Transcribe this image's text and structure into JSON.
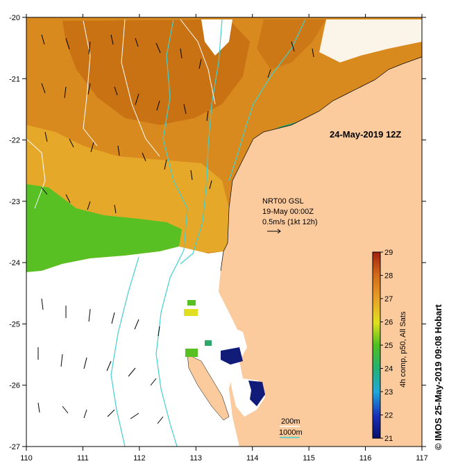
{
  "map": {
    "date_label": "24-May-2019 12Z",
    "current_info": {
      "line1": "NRT00 GSL",
      "line2": "19-May 00:00Z",
      "line3": "0.5m/s (1kt 12h)"
    },
    "depth_legend": {
      "label_200": "200m",
      "label_1000": "1000m",
      "color_200": "#ffffff",
      "color_1000": "#40d0d0"
    },
    "colorbar": {
      "title": "4h comp, p50, All Sats",
      "ticks": [
        "29",
        "28",
        "27",
        "26",
        "25",
        "24",
        "23",
        "22",
        "21"
      ]
    },
    "credit": "© IMOS 25-May-2019 09:08 Hobart",
    "x_ticks": [
      "110",
      "111",
      "112",
      "113",
      "114",
      "115",
      "116",
      "117"
    ],
    "y_ticks": [
      "-20",
      "-21",
      "-22",
      "-23",
      "-24",
      "-25",
      "-26",
      "-27"
    ],
    "colors": {
      "land": "#fbcb9e",
      "warm": "#d88a1e",
      "hot": "#c46a12",
      "mid": "#e7ab2a",
      "green": "#59c024",
      "cool": "#2ba86a"
    }
  }
}
